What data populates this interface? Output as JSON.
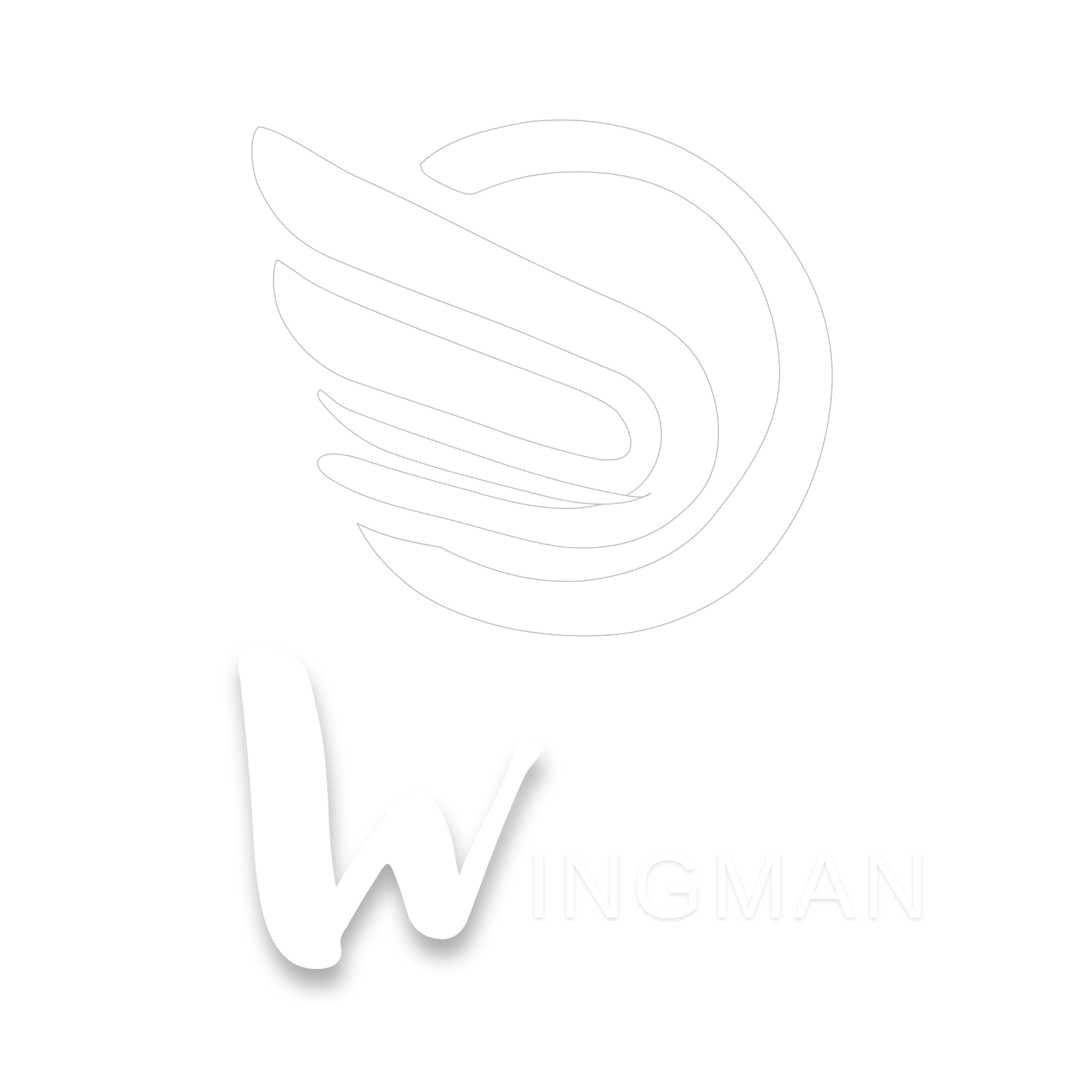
{
  "logo": {
    "wordmark": "WINGMAN",
    "wordmark_initial": "W",
    "wordmark_rest": "INGMAN",
    "colors": {
      "background": "#ffffff",
      "fill": "#ffffff",
      "outline": "#bdbdc2",
      "shadow": "#8a8a8f"
    }
  }
}
